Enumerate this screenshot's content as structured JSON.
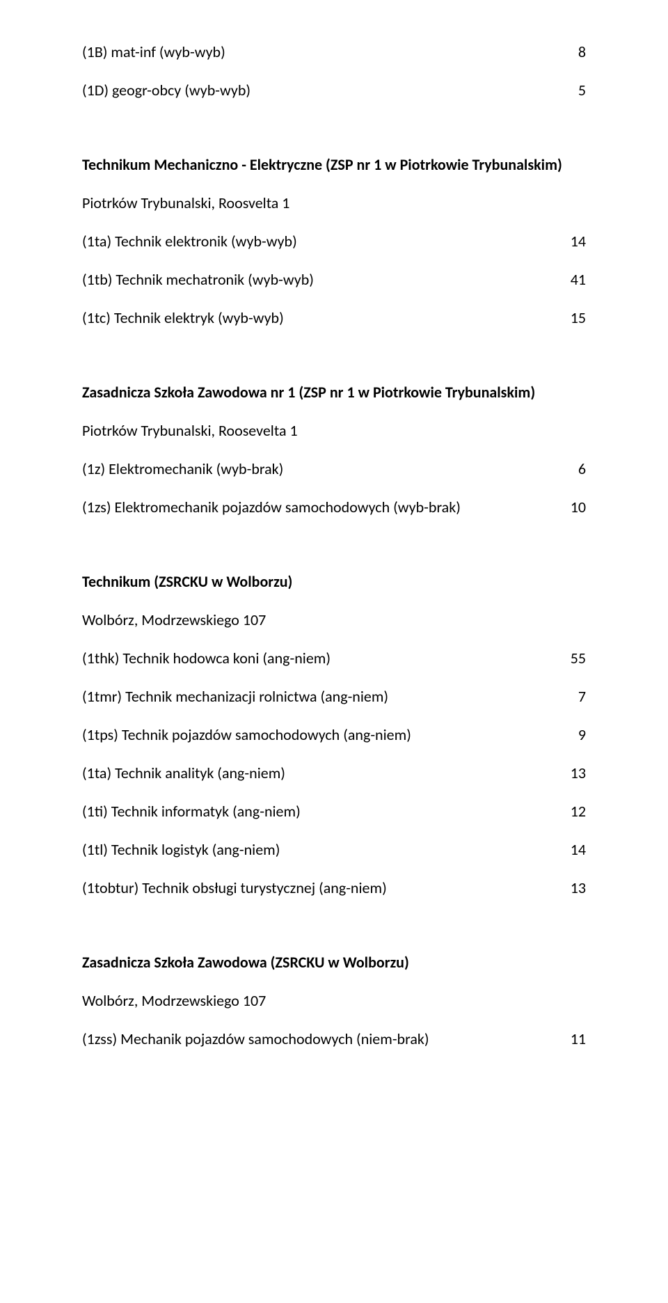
{
  "top_rows": [
    {
      "label": "(1B) mat-inf (wyb-wyb)",
      "value": "8"
    },
    {
      "label": "(1D) geogr-obcy (wyb-wyb)",
      "value": "5"
    }
  ],
  "sections": [
    {
      "title": "Technikum Mechaniczno - Elektryczne (ZSP nr 1 w Piotrkowie Trybunalskim)",
      "subtitle": "Piotrków Trybunalski, Roosvelta 1",
      "rows": [
        {
          "label": "(1ta) Technik elektronik (wyb-wyb)",
          "value": "14"
        },
        {
          "label": "(1tb) Technik mechatronik (wyb-wyb)",
          "value": "41"
        },
        {
          "label": "(1tc) Technik elektryk (wyb-wyb)",
          "value": "15"
        }
      ]
    },
    {
      "title": "Zasadnicza Szkoła Zawodowa nr 1 (ZSP nr 1 w Piotrkowie Trybunalskim)",
      "subtitle": "Piotrków Trybunalski, Roosevelta 1",
      "rows": [
        {
          "label": "(1z) Elektromechanik (wyb-brak)",
          "value": "6"
        },
        {
          "label": "(1zs) Elektromechanik pojazdów samochodowych (wyb-brak)",
          "value": "10"
        }
      ]
    },
    {
      "title": "Technikum (ZSRCKU w Wolborzu)",
      "subtitle": "Wolbórz, Modrzewskiego 107",
      "rows": [
        {
          "label": "(1thk) Technik hodowca koni (ang-niem)",
          "value": "55"
        },
        {
          "label": "(1tmr) Technik mechanizacji rolnictwa (ang-niem)",
          "value": "7"
        },
        {
          "label": "(1tps) Technik pojazdów samochodowych (ang-niem)",
          "value": "9"
        },
        {
          "label": "(1ta) Technik analityk (ang-niem)",
          "value": "13"
        },
        {
          "label": "(1ti) Technik informatyk (ang-niem)",
          "value": "12"
        },
        {
          "label": "(1tl) Technik logistyk (ang-niem)",
          "value": "14"
        },
        {
          "label": "(1tobtur) Technik obsługi turystycznej (ang-niem)",
          "value": "13"
        }
      ]
    },
    {
      "title": "Zasadnicza Szkoła Zawodowa (ZSRCKU w Wolborzu)",
      "subtitle": "Wolbórz, Modrzewskiego 107",
      "rows": [
        {
          "label": "(1zss) Mechanik pojazdów samochodowych (niem-brak)",
          "value": "11"
        }
      ]
    }
  ]
}
